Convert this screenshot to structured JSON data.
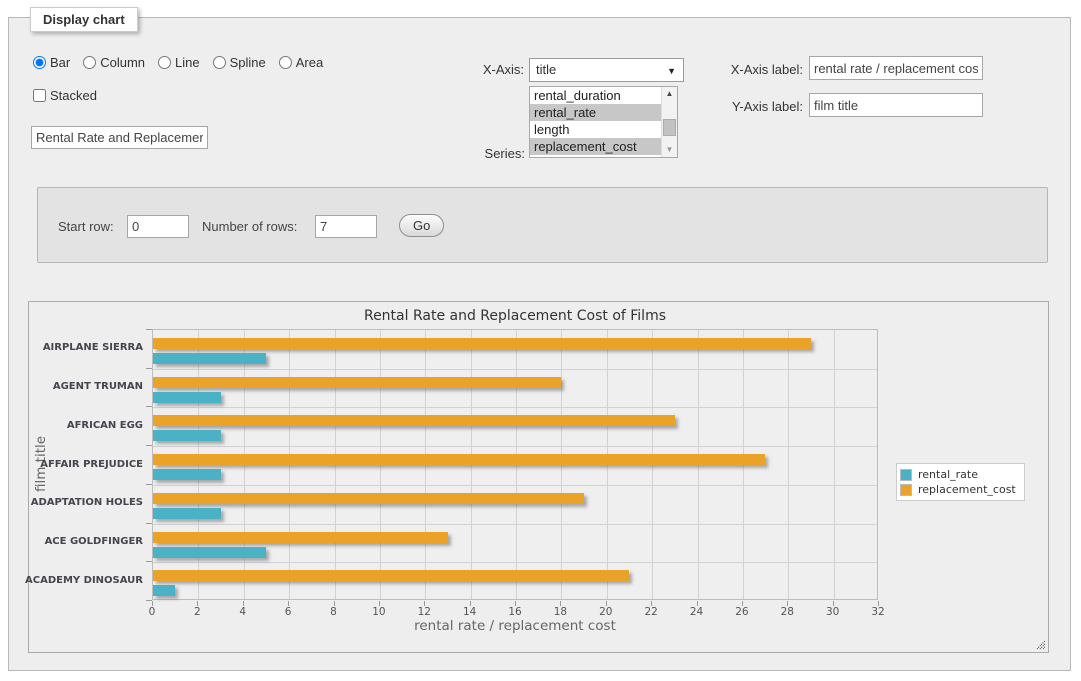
{
  "panel": {
    "legend_title": "Display chart"
  },
  "controls": {
    "chart_types": [
      {
        "label": "Bar",
        "selected": true
      },
      {
        "label": "Column",
        "selected": false
      },
      {
        "label": "Line",
        "selected": false
      },
      {
        "label": "Spline",
        "selected": false
      },
      {
        "label": "Area",
        "selected": false
      }
    ],
    "stacked_label": "Stacked",
    "stacked_checked": false,
    "chart_title_value": "Rental Rate and Replacement Cost of Films",
    "x_axis_label_text": "X-Axis:",
    "x_axis_selected": "title",
    "series_label_text": "Series:",
    "series_options": [
      {
        "label": "rental_duration",
        "selected": false
      },
      {
        "label": "rental_rate",
        "selected": true
      },
      {
        "label": "length",
        "selected": false
      },
      {
        "label": "replacement_cost",
        "selected": true
      }
    ],
    "x_axis_label_field": {
      "label": "X-Axis label:",
      "value": "rental rate / replacement cost"
    },
    "y_axis_label_field": {
      "label": "Y-Axis label:",
      "value": "film title"
    }
  },
  "row_controls": {
    "start_row_label": "Start row:",
    "start_row_value": "0",
    "num_rows_label": "Number of rows:",
    "num_rows_value": "7",
    "go_button_label": "Go"
  },
  "chart_data": {
    "type": "bar",
    "orientation": "horizontal",
    "title": "Rental Rate and Replacement Cost of Films",
    "xlabel": "rental rate / replacement cost",
    "ylabel": "film title",
    "categories": [
      "AIRPLANE SIERRA",
      "AGENT TRUMAN",
      "AFRICAN EGG",
      "AFFAIR PREJUDICE",
      "ADAPTATION HOLES",
      "ACE GOLDFINGER",
      "ACADEMY DINOSAUR"
    ],
    "series": [
      {
        "name": "rental_rate",
        "color": "#4bb2c5",
        "values": [
          4.99,
          2.99,
          2.99,
          2.99,
          2.99,
          4.99,
          0.99
        ]
      },
      {
        "name": "replacement_cost",
        "color": "#eaa228",
        "values": [
          28.99,
          17.99,
          22.99,
          26.99,
          18.99,
          12.99,
          20.99
        ]
      }
    ],
    "xlim": [
      0,
      32
    ],
    "xticks": [
      0,
      2,
      4,
      6,
      8,
      10,
      12,
      14,
      16,
      18,
      20,
      22,
      24,
      26,
      28,
      30,
      32
    ],
    "grid": true,
    "legend_position": "right",
    "legend_entries": [
      "rental_rate",
      "replacement_cost"
    ]
  }
}
